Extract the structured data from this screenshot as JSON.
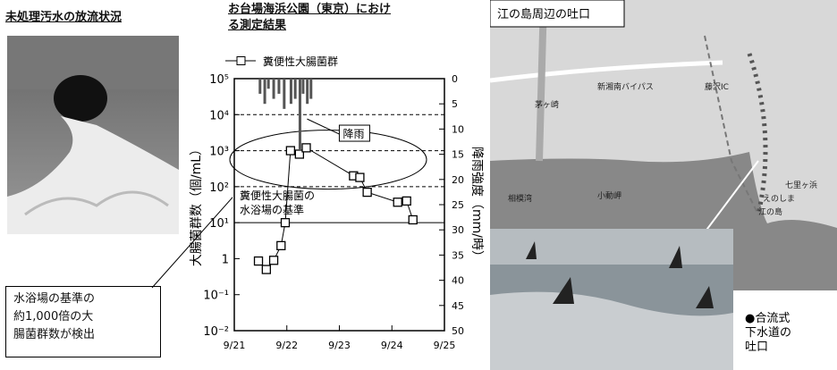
{
  "photo_title": "未処理汚水の放流状況",
  "chart_data": {
    "type": "line",
    "title": "お台場海浜公園（東京）における測定結果",
    "ylabel": "大腸菌群数（個/mL）",
    "y2label": "降雨強度（mm/時）",
    "log_y": true,
    "ylim": [
      0.01,
      100000
    ],
    "yticks": [
      {
        "value": 0.01,
        "label": "10⁻²"
      },
      {
        "value": 0.1,
        "label": "10⁻¹"
      },
      1,
      {
        "value": 10,
        "label": "10¹"
      },
      {
        "value": 100,
        "label": "10²"
      },
      {
        "value": 1000,
        "label": "10³"
      },
      {
        "value": 10000,
        "label": "10⁴"
      },
      {
        "value": 100000,
        "label": "10⁵"
      }
    ],
    "dashed_grid": [
      100,
      1000,
      10000
    ],
    "y2lim": [
      50,
      0
    ],
    "y2ticks": [
      0,
      5,
      10,
      15,
      20,
      25,
      30,
      35,
      40,
      45,
      50
    ],
    "xlim": [
      21,
      25
    ],
    "xticks": [
      {
        "value": 21,
        "label": "9/21"
      },
      {
        "value": 22,
        "label": "9/22"
      },
      {
        "value": 23,
        "label": "9/23"
      },
      {
        "value": 24,
        "label": "9/24"
      },
      {
        "value": 25,
        "label": "9/25"
      }
    ],
    "series": [
      {
        "name": "糞便性大腸菌群",
        "color": "#000000",
        "marker": "square",
        "x": [
          21.46,
          21.61,
          21.75,
          21.89,
          21.97,
          22.07,
          22.24,
          22.37,
          23.27,
          23.39,
          23.53,
          24.11,
          24.28,
          24.4
        ],
        "values": [
          0.86,
          0.5,
          0.9,
          2.3,
          10,
          1000,
          800,
          1200,
          200,
          180,
          70,
          37,
          40,
          12
        ]
      },
      {
        "name": "降雨",
        "type": "bar",
        "axis": "y2",
        "color": "#555555",
        "x": [
          21.49,
          21.58,
          21.65,
          21.75,
          21.85,
          21.95,
          22.08,
          22.16,
          22.25,
          22.31,
          22.39,
          22.46
        ],
        "values": [
          3,
          5,
          2,
          4,
          3,
          6,
          5,
          4,
          14,
          3,
          5,
          4
        ]
      }
    ],
    "reference": {
      "value": 10,
      "label": "糞便性大腸菌の\n水浴場の基準"
    },
    "annotation_rain": "降雨"
  },
  "callout": "水浴場の基準の\n約1,000倍の大\n腸菌群数が検出",
  "map": {
    "title": "江の島周辺の吐口",
    "labels": [
      "相模湾",
      "江の島",
      "小動岬",
      "茅ヶ崎",
      "藤沢IC",
      "新湘南バイパス",
      "七里ヶ浜",
      "えのしま"
    ],
    "legend": "●合流式\n下水道の\n吐口"
  }
}
